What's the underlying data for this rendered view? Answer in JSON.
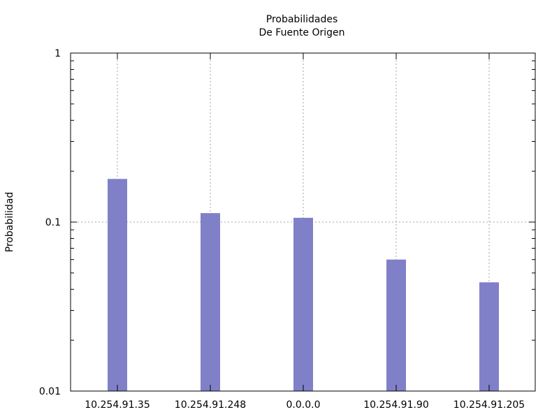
{
  "chart_data": {
    "type": "bar",
    "title": "Probabilidades",
    "subtitle": "De Fuente Origen",
    "xlabel": "",
    "ylabel": "Probabilidad",
    "yscale": "log",
    "ylim": [
      0.01,
      1
    ],
    "yticks": [
      {
        "value": 0.01,
        "label": "0.01"
      },
      {
        "value": 0.1,
        "label": "0.1"
      },
      {
        "value": 1,
        "label": "1"
      }
    ],
    "categories": [
      "10.254.91.35",
      "10.254.91.248",
      "0.0.0.0",
      "10.254.91.90",
      "10.254.91.205"
    ],
    "values": [
      0.18,
      0.113,
      0.106,
      0.06,
      0.044
    ],
    "grid": true,
    "color": "#8080c8"
  }
}
